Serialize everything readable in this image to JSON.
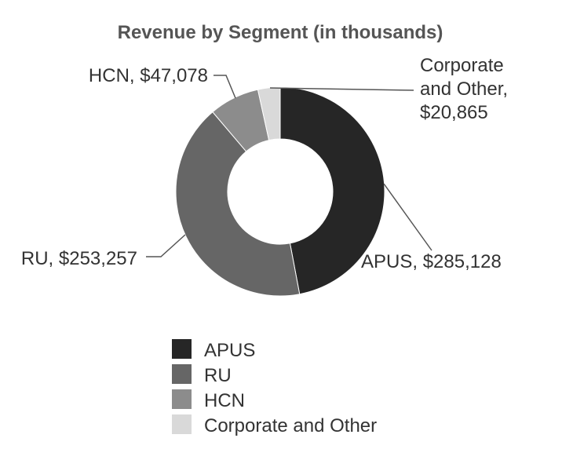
{
  "chart_data": {
    "type": "pie",
    "variant": "donut",
    "title": "Revenue by Segment (in thousands)",
    "categories": [
      "APUS",
      "RU",
      "HCN",
      "Corporate and Other"
    ],
    "values": [
      285128,
      253257,
      47078,
      20865
    ],
    "colors": [
      "#262626",
      "#666666",
      "#8c8c8c",
      "#d9d9d9"
    ],
    "data_labels": [
      [
        "APUS, $285,128"
      ],
      [
        "RU, $253,257"
      ],
      [
        "HCN, $47,078"
      ],
      [
        "Corporate",
        "and Other,",
        "$20,865"
      ]
    ],
    "legend": {
      "placement": "bottom",
      "entries": [
        "APUS",
        "RU",
        "HCN",
        "Corporate and Other"
      ]
    }
  }
}
